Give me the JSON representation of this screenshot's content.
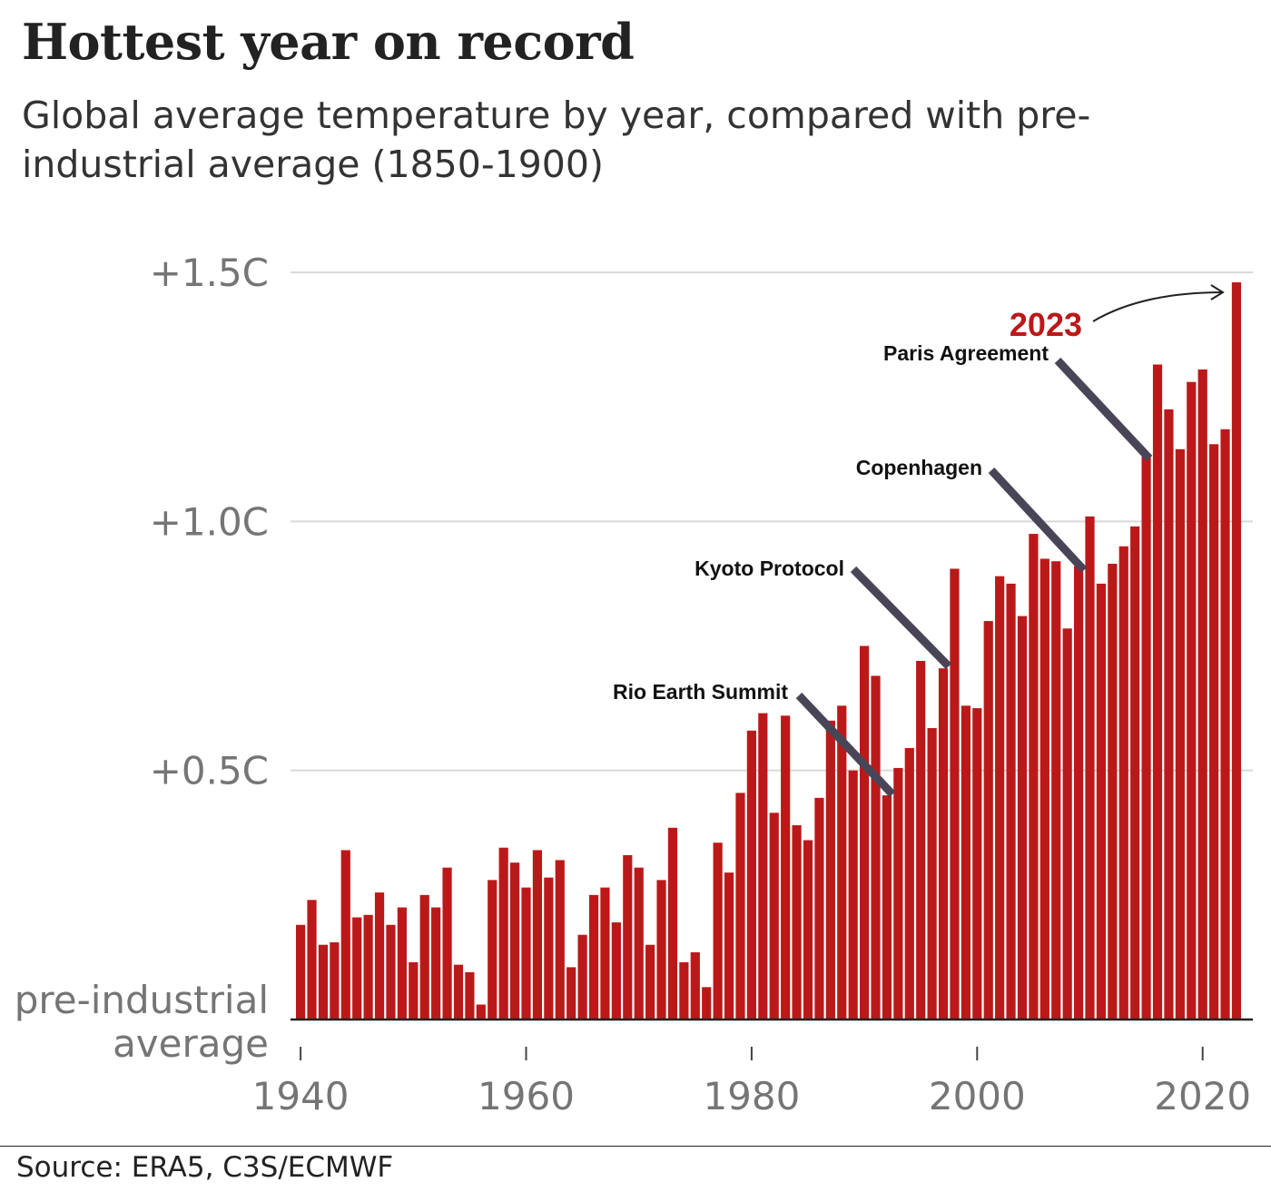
{
  "colors": {
    "bar": "#bb1919",
    "highlight": "#bb1919",
    "annotation_line": "#4a4556",
    "gridline": "#d9d9d9",
    "axis": "#222222",
    "tick_text": "#757575"
  },
  "chart_data": {
    "type": "bar",
    "title": "Hottest year on record",
    "subtitle": "Global average temperature by year, compared with pre-industrial average (1850-1900)",
    "xlabel": "",
    "ylabel": "",
    "ylim": [
      0,
      1.5
    ],
    "baseline_label_lines": [
      "pre-industrial",
      "average"
    ],
    "y_ticks": [
      {
        "value": 0.5,
        "label": "+0.5C"
      },
      {
        "value": 1.0,
        "label": "+1.0C"
      },
      {
        "value": 1.5,
        "label": "+1.5C"
      }
    ],
    "x_ticks": [
      {
        "value": 1940,
        "label": "1940"
      },
      {
        "value": 1960,
        "label": "1960"
      },
      {
        "value": 1980,
        "label": "1980"
      },
      {
        "value": 2000,
        "label": "2000"
      },
      {
        "value": 2020,
        "label": "2020"
      }
    ],
    "categories": [
      1940,
      1941,
      1942,
      1943,
      1944,
      1945,
      1946,
      1947,
      1948,
      1949,
      1950,
      1951,
      1952,
      1953,
      1954,
      1955,
      1956,
      1957,
      1958,
      1959,
      1960,
      1961,
      1962,
      1963,
      1964,
      1965,
      1966,
      1967,
      1968,
      1969,
      1970,
      1971,
      1972,
      1973,
      1974,
      1975,
      1976,
      1977,
      1978,
      1979,
      1980,
      1981,
      1982,
      1983,
      1984,
      1985,
      1986,
      1987,
      1988,
      1989,
      1990,
      1991,
      1992,
      1993,
      1994,
      1995,
      1996,
      1997,
      1998,
      1999,
      2000,
      2001,
      2002,
      2003,
      2004,
      2005,
      2006,
      2007,
      2008,
      2009,
      2010,
      2011,
      2012,
      2013,
      2014,
      2015,
      2016,
      2017,
      2018,
      2019,
      2020,
      2021,
      2022,
      2023
    ],
    "values": [
      0.19,
      0.24,
      0.15,
      0.155,
      0.34,
      0.205,
      0.21,
      0.255,
      0.19,
      0.225,
      0.115,
      0.25,
      0.225,
      0.305,
      0.11,
      0.095,
      0.03,
      0.28,
      0.345,
      0.315,
      0.265,
      0.34,
      0.285,
      0.32,
      0.105,
      0.17,
      0.25,
      0.265,
      0.195,
      0.33,
      0.305,
      0.15,
      0.28,
      0.385,
      0.115,
      0.135,
      0.065,
      0.355,
      0.295,
      0.455,
      0.58,
      0.615,
      0.415,
      0.61,
      0.39,
      0.36,
      0.445,
      0.6,
      0.63,
      0.5,
      0.75,
      0.69,
      0.45,
      0.505,
      0.545,
      0.72,
      0.585,
      0.705,
      0.905,
      0.63,
      0.625,
      0.8,
      0.89,
      0.875,
      0.81,
      0.975,
      0.925,
      0.92,
      0.785,
      0.91,
      1.01,
      0.875,
      0.915,
      0.95,
      0.99,
      1.13,
      1.315,
      1.225,
      1.145,
      1.28,
      1.305,
      1.155,
      1.185,
      1.48
    ],
    "annotations": [
      {
        "label": "Rio Earth Summit",
        "year": 1992
      },
      {
        "label": "Kyoto Protocol",
        "year": 1997
      },
      {
        "label": "Copenhagen",
        "year": 2009
      },
      {
        "label": "Paris Agreement",
        "year": 2015
      }
    ],
    "highlight": {
      "label": "2023",
      "year": 2023
    },
    "source": "Source: ERA5, C3S/ECMWF"
  }
}
